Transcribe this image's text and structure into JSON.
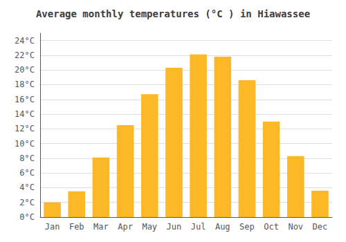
{
  "chart_data": {
    "type": "bar",
    "title": "Average monthly temperatures (°C ) in Hiawassee",
    "categories": [
      "Jan",
      "Feb",
      "Mar",
      "Apr",
      "May",
      "Jun",
      "Jul",
      "Aug",
      "Sep",
      "Oct",
      "Nov",
      "Dec"
    ],
    "values": [
      2.0,
      3.5,
      8.1,
      12.5,
      16.7,
      20.3,
      22.1,
      21.8,
      18.6,
      13.0,
      8.3,
      3.6
    ],
    "color": "#FDB827",
    "ylim": [
      0,
      25
    ],
    "yticks": [
      {
        "value": 0,
        "label": "0°C"
      },
      {
        "value": 2,
        "label": "2°C"
      },
      {
        "value": 4,
        "label": "4°C"
      },
      {
        "value": 6,
        "label": "6°C"
      },
      {
        "value": 8,
        "label": "8°C"
      },
      {
        "value": 10,
        "label": "10°C"
      },
      {
        "value": 12,
        "label": "12°C"
      },
      {
        "value": 14,
        "label": "14°C"
      },
      {
        "value": 16,
        "label": "16°C"
      },
      {
        "value": 18,
        "label": "18°C"
      },
      {
        "value": 20,
        "label": "20°C"
      },
      {
        "value": 22,
        "label": "22°C"
      },
      {
        "value": 24,
        "label": "24°C"
      }
    ],
    "grid": true
  }
}
